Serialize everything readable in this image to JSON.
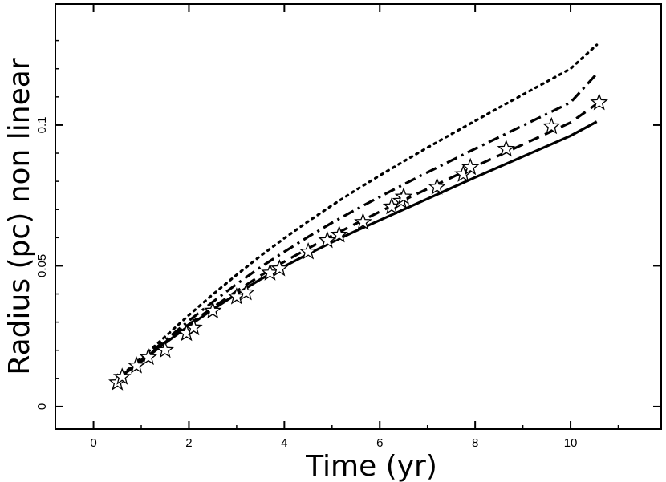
{
  "chart_data": {
    "type": "line",
    "title": "",
    "xlabel": "Time (yr)",
    "ylabel": "Radius (pc) non linear",
    "xlim": [
      -0.8,
      11.9
    ],
    "ylim": [
      -0.008,
      0.143
    ],
    "xticks": [
      "0",
      "2",
      "4",
      "6",
      "8",
      "10"
    ],
    "xtick_values": [
      0,
      2,
      4,
      6,
      8,
      10
    ],
    "yticks": [
      "0",
      "0.05",
      "0.1"
    ],
    "ytick_values": [
      0,
      0.05,
      0.1
    ],
    "grid": false,
    "legend": "none",
    "series": [
      {
        "style": "solid",
        "color": "#000000",
        "x": [
          0.5,
          1.0,
          1.5,
          2.0,
          2.5,
          3.0,
          3.5,
          4.0,
          4.5,
          5.0,
          5.5,
          6.0,
          6.5,
          7.0,
          7.5,
          8.0,
          8.5,
          9.0,
          9.5,
          10.0,
          10.55
        ],
        "y": [
          0.0098,
          0.016,
          0.0225,
          0.0287,
          0.0345,
          0.04,
          0.0452,
          0.0498,
          0.0542,
          0.0584,
          0.0624,
          0.0662,
          0.07,
          0.0738,
          0.0776,
          0.0814,
          0.0851,
          0.0888,
          0.0925,
          0.0962,
          0.1012
        ]
      },
      {
        "style": "dashed",
        "color": "#000000",
        "x": [
          0.5,
          1.0,
          1.5,
          2.0,
          2.5,
          3.0,
          3.5,
          4.0,
          4.5,
          5.0,
          5.5,
          6.0,
          6.5,
          7.0,
          7.5,
          8.0,
          8.5,
          9.0,
          9.5,
          10.0,
          10.55
        ],
        "y": [
          0.0098,
          0.0162,
          0.0228,
          0.0292,
          0.0352,
          0.041,
          0.0465,
          0.0515,
          0.0562,
          0.0607,
          0.065,
          0.0692,
          0.0733,
          0.0773,
          0.0813,
          0.0853,
          0.0892,
          0.0931,
          0.097,
          0.1009,
          0.1075
        ]
      },
      {
        "style": "dash-dot",
        "color": "#000000",
        "x": [
          0.5,
          1.0,
          1.5,
          2.0,
          2.5,
          3.0,
          3.5,
          4.0,
          4.5,
          5.0,
          5.5,
          6.0,
          6.5,
          7.0,
          7.5,
          8.0,
          8.5,
          9.0,
          9.5,
          10.0,
          10.55
        ],
        "y": [
          0.0098,
          0.0165,
          0.0235,
          0.0305,
          0.0372,
          0.0435,
          0.0495,
          0.055,
          0.0603,
          0.0653,
          0.07,
          0.0745,
          0.0789,
          0.0832,
          0.0874,
          0.0916,
          0.0957,
          0.0998,
          0.1039,
          0.108,
          0.1182
        ]
      },
      {
        "style": "dotted",
        "color": "#000000",
        "x": [
          0.5,
          1.0,
          1.5,
          2.0,
          2.5,
          3.0,
          3.5,
          4.0,
          4.5,
          5.0,
          5.5,
          6.0,
          6.5,
          7.0,
          7.5,
          8.0,
          8.5,
          9.0,
          9.5,
          10.0,
          10.55
        ],
        "y": [
          0.0098,
          0.0172,
          0.0248,
          0.0325,
          0.0398,
          0.0468,
          0.0535,
          0.0598,
          0.0658,
          0.0715,
          0.0769,
          0.0821,
          0.0871,
          0.092,
          0.0968,
          0.1015,
          0.1062,
          0.1108,
          0.1154,
          0.12,
          0.1285
        ]
      }
    ],
    "markers": {
      "shape": "star",
      "x": [
        0.5,
        0.6,
        0.9,
        1.15,
        1.5,
        1.95,
        2.1,
        2.5,
        3.0,
        3.2,
        3.7,
        3.9,
        4.5,
        4.9,
        5.15,
        5.65,
        6.25,
        6.45,
        6.5,
        7.2,
        7.75,
        7.9,
        8.65,
        9.6,
        10.6
      ],
      "y": [
        0.0085,
        0.0105,
        0.0145,
        0.0175,
        0.02,
        0.026,
        0.028,
        0.034,
        0.039,
        0.0405,
        0.0475,
        0.049,
        0.055,
        0.059,
        0.061,
        0.0655,
        0.071,
        0.073,
        0.0745,
        0.078,
        0.0825,
        0.085,
        0.0915,
        0.0995,
        0.108
      ]
    }
  }
}
